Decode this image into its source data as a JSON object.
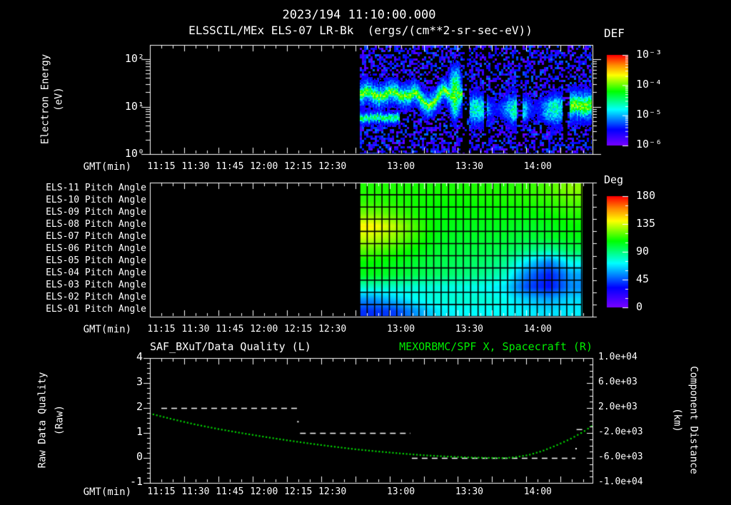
{
  "header": {
    "timestamp": "2023/194 11:10:00.000",
    "instrument_title": "ELSSCIL/MEx ELS-07 LR-Bk  (ergs/(cm**2-sr-sec-eV))"
  },
  "colors": {
    "background": "#000000",
    "text": "#ffffff",
    "axis": "#ffffff",
    "title_green": "#00ee00",
    "curve_green": "#00d400",
    "quality_white": "#ffffff"
  },
  "time_axis": {
    "label": "GMT(min)",
    "start_gmt": "11:10",
    "end_gmt": "14:24",
    "minor_tick_min": 5,
    "major_tick_min": 15,
    "tick_labels": [
      {
        "min": 5,
        "label": "11:15"
      },
      {
        "min": 20,
        "label": "11:30"
      },
      {
        "min": 35,
        "label": "11:45"
      },
      {
        "min": 50,
        "label": "12:00"
      },
      {
        "min": 65,
        "label": "12:15"
      },
      {
        "min": 80,
        "label": "12:30"
      },
      {
        "min": 110,
        "label": "13:00"
      },
      {
        "min": 140,
        "label": "13:30"
      },
      {
        "min": 170,
        "label": "14:00"
      }
    ]
  },
  "chart_data": [
    {
      "type": "heatmap",
      "id": "electron-energy-spectrogram",
      "title": "ELSSCIL/MEx ELS-07 LR-Bk",
      "units": "ergs/(cm**2-sr-sec-eV)",
      "xlabel": "GMT(min)",
      "ylabel": "Electron Energy (eV)",
      "ylabel_line1": "Electron Energy",
      "ylabel_line2": "(eV)",
      "yscale": "log",
      "ylim_ev": [
        1,
        200
      ],
      "ytick_labels": [
        {
          "log": 0,
          "label": "10⁰"
        },
        {
          "log": 1,
          "label": "10¹"
        },
        {
          "log": 2,
          "label": "10²"
        }
      ],
      "colorbar": {
        "label": "DEF",
        "scale": "log",
        "tick_labels": [
          "10⁻³",
          "10⁻⁴",
          "10⁻⁵",
          "10⁻⁶"
        ]
      },
      "data_start_min": 92,
      "data_start_gmt": "12:42",
      "data_end_gmt": "14:24",
      "description": "No data before 12:42. Noisy violet/blue background speckle with bright green flux band near 15-25 eV from 12:42 to ~13:27, secondary cyan band near 6-8 eV until ~13:00, vertical bright spike near 13:24, diffuse cyan band 13:29-14:12 with dark dropout columns, bright green patch 14:14-14:24.",
      "bands": [
        {
          "id": "main-band",
          "t0": 92,
          "t1": 137,
          "log_e": 1.28,
          "sigma": 0.095,
          "skirt_sigma": 0.22,
          "amp": 0.66,
          "wave_amp": 0.06,
          "wave_period": 11,
          "dip_t0": 115,
          "dip_t1": 128,
          "dip_depth": 0.17
        },
        {
          "id": "low-band",
          "t0": 92,
          "t1": 109,
          "log_e": 0.78,
          "sigma": 0.07,
          "skirt_sigma": 0.13,
          "amp": 0.52
        },
        {
          "id": "spike",
          "t0": 129,
          "t1": 138,
          "log_e": 1.32,
          "sigma": 0.4,
          "amp": 0.62,
          "t_center": 133.5,
          "t_sigma": 2.1
        },
        {
          "id": "diffuse-band",
          "t0": 139,
          "t1": 182,
          "log_e": 0.96,
          "sigma": 0.24,
          "skirt_sigma": 0.38,
          "amp": 0.46,
          "mod_period": 17
        },
        {
          "id": "end-patch",
          "t0": 183.5,
          "t1": 194.5,
          "log_e": 1.04,
          "sigma": 0.17,
          "skirt_sigma": 0.3,
          "amp": 0.63
        }
      ],
      "gaps": [
        [
          137,
          139.6,
          0.05
        ],
        [
          160.6,
          163,
          0.12
        ],
        [
          180.6,
          183,
          0.15
        ],
        [
          146,
          147.6,
          0.35
        ]
      ]
    },
    {
      "type": "heatmap",
      "id": "pitch-angle-grid",
      "xlabel": "GMT(min)",
      "rows": [
        "ELS-11 Pitch Angle",
        "ELS-10 Pitch Angle",
        "ELS-09 Pitch Angle",
        "ELS-08 Pitch Angle",
        "ELS-07 Pitch Angle",
        "ELS-06 Pitch Angle",
        "ELS-05 Pitch Angle",
        "ELS-04 Pitch Angle",
        "ELS-03 Pitch Angle",
        "ELS-02 Pitch Angle",
        "ELS-01 Pitch Angle"
      ],
      "colorbar": {
        "label": "Deg",
        "ticks": [
          180,
          135,
          90,
          45,
          0
        ],
        "tick_labels": [
          "180",
          "135",
          "90",
          "45",
          "0"
        ]
      },
      "data_start_min": 92,
      "data_end_min": 189.2,
      "data_start_gmt": "12:42",
      "data_end_gmt": "14:19",
      "columns_gmt": [
        "12:47",
        "12:57",
        "13:07",
        "13:16",
        "13:26",
        "13:36",
        "13:45",
        "13:55",
        "14:05",
        "14:14"
      ],
      "values_deg": [
        [
          112,
          112,
          111,
          111,
          111,
          112,
          112,
          114,
          118,
          126
        ],
        [
          114,
          112,
          110,
          109,
          109,
          110,
          111,
          112,
          114,
          119
        ],
        [
          123,
          118,
          111,
          107,
          107,
          107,
          107,
          107,
          109,
          113
        ],
        [
          142,
          133,
          117,
          106,
          104,
          104,
          104,
          102,
          104,
          108
        ],
        [
          133,
          126,
          114,
          104,
          102,
          102,
          101,
          99,
          102,
          105
        ],
        [
          119,
          114,
          107,
          101,
          99,
          98,
          96,
          90,
          84,
          95
        ],
        [
          108,
          105,
          101,
          97,
          95,
          93,
          88,
          68,
          52,
          74
        ],
        [
          104,
          101,
          97,
          94,
          91,
          88,
          80,
          52,
          36,
          58
        ],
        [
          80,
          79,
          77,
          76,
          75,
          74,
          68,
          44,
          34,
          54
        ],
        [
          56,
          64,
          73,
          77,
          78,
          78,
          74,
          64,
          58,
          67
        ],
        [
          40,
          42,
          56,
          69,
          72,
          72,
          72,
          70,
          67,
          70
        ]
      ]
    },
    {
      "type": "line",
      "id": "quality-and-distance",
      "title_left": "SAF_BXuT/Data Quality (L)",
      "title_right": "MEXORBMC/SPF X, Spacecraft (R)",
      "xlabel": "GMT(min)",
      "ylabel_left": "Raw Data Quality (Raw)",
      "ylabel_left_line1": "Raw Data Quality",
      "ylabel_left_line2": "(Raw)",
      "ylabel_right": "Component Distance (km)",
      "ylabel_right_line1": "Component Distance",
      "ylabel_right_line2": "(km)",
      "ylim_left": [
        -1,
        4
      ],
      "ylim_right": [
        -10000,
        10000
      ],
      "yticks_left": [
        "4",
        "3",
        "2",
        "1",
        "0",
        "-1"
      ],
      "ytick_labels_right": [
        "1.0e+04",
        "6.0e+03",
        "2.0e+03",
        "-2.0e+03",
        "-6.0e+03",
        "-1.0e+04"
      ],
      "quality_segments": [
        {
          "t0": 5,
          "t1": 65,
          "value": 2
        },
        {
          "t0": 65.8,
          "t1": 114.2,
          "value": 1
        },
        {
          "t0": 114.8,
          "t1": 186.5,
          "value": 0
        },
        {
          "t0": 187,
          "t1": 189.5,
          "value": 1.15
        }
      ],
      "quality_dots": [
        {
          "t": 64.9,
          "value": 1.45
        },
        {
          "t": 186.8,
          "value": 0.37
        }
      ],
      "distance_curve_points_min_km": [
        [
          0,
          1120
        ],
        [
          10,
          200
        ],
        [
          20,
          -640
        ],
        [
          30,
          -1360
        ],
        [
          40,
          -2000
        ],
        [
          50,
          -2600
        ],
        [
          60,
          -3160
        ],
        [
          70,
          -3680
        ],
        [
          80,
          -4160
        ],
        [
          90,
          -4600
        ],
        [
          100,
          -4960
        ],
        [
          110,
          -5280
        ],
        [
          120,
          -5560
        ],
        [
          130,
          -5760
        ],
        [
          140,
          -5920
        ],
        [
          148,
          -5980
        ],
        [
          156,
          -6000
        ],
        [
          160,
          -5880
        ],
        [
          166,
          -5520
        ],
        [
          172,
          -4880
        ],
        [
          178,
          -4000
        ],
        [
          184,
          -3000
        ],
        [
          190,
          -1800
        ],
        [
          194,
          -800
        ]
      ]
    }
  ]
}
